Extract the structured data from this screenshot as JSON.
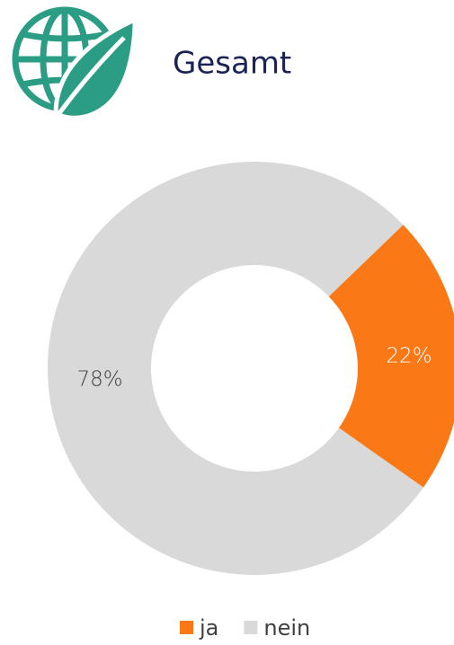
{
  "chart_data": {
    "type": "donut",
    "title": "Gesamt",
    "categories": [
      "ja",
      "nein"
    ],
    "values": [
      22,
      78
    ],
    "value_labels": [
      "22%",
      "78%"
    ],
    "colors": [
      "#fa7816",
      "#d9d9d9"
    ],
    "legend": "bottom"
  }
}
